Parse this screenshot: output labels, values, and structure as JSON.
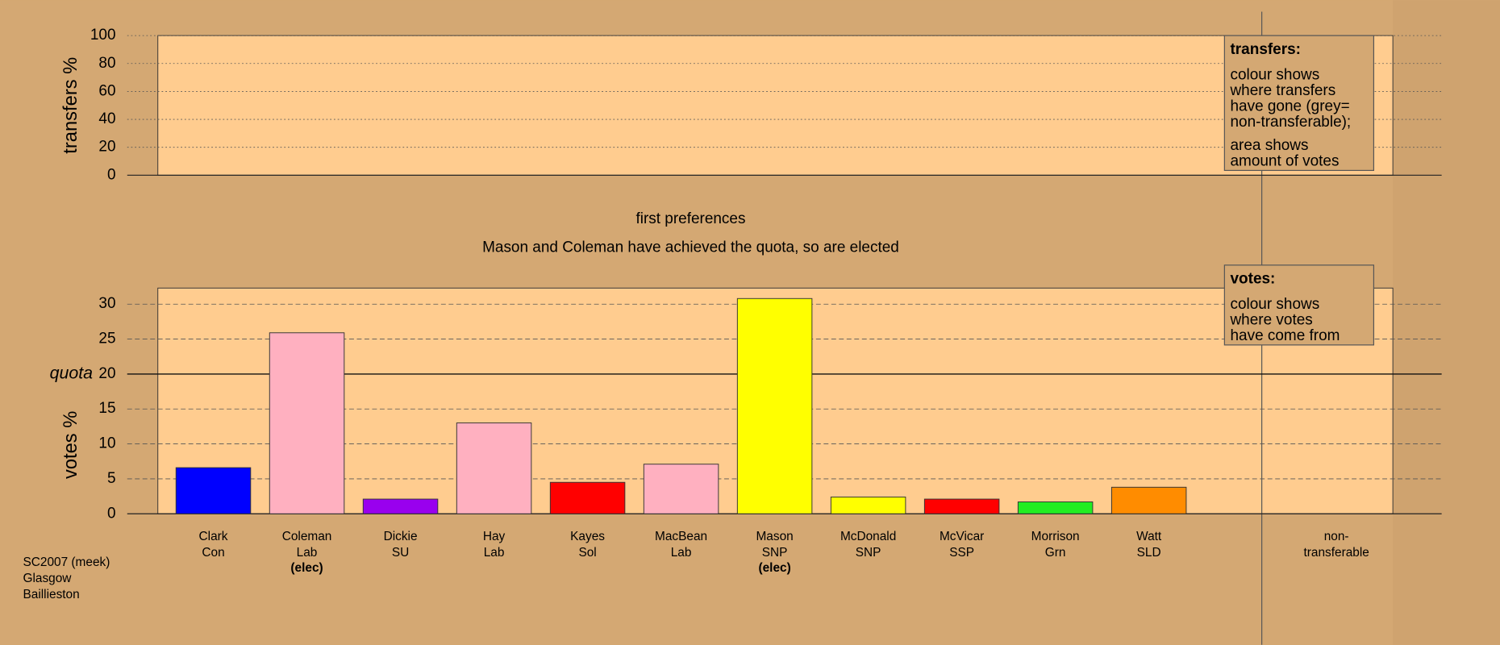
{
  "chart_data": [
    {
      "type": "bar",
      "ylabel": "transfers %",
      "ylim": [
        0,
        100
      ],
      "yticks": [
        0,
        20,
        40,
        60,
        80,
        100
      ],
      "grid": true,
      "note": {
        "title": "transfers:",
        "paragraphs": [
          [
            "colour shows",
            "where transfers",
            "have gone (grey=",
            "non-transferable);"
          ],
          [
            "area shows",
            "amount of votes"
          ]
        ]
      }
    },
    {
      "type": "bar",
      "title": "first preferences",
      "subtitle": "Mason and Coleman have achieved the quota, so are elected",
      "ylabel": "votes %",
      "ylim": [
        0,
        32.3
      ],
      "yticks": [
        0,
        5,
        10,
        15,
        20,
        25,
        30
      ],
      "grid": true,
      "quota": {
        "value": 20,
        "label": "quota"
      },
      "categories": [
        "Clark",
        "Coleman",
        "Dickie",
        "Hay",
        "Kayes",
        "MacBean",
        "Mason",
        "McDonald",
        "McVicar",
        "Morrison",
        "Watt"
      ],
      "parties": [
        "Con",
        "Lab",
        "SU",
        "Lab",
        "Sol",
        "Lab",
        "SNP",
        "SNP",
        "SSP",
        "Grn",
        "SLD"
      ],
      "status": [
        null,
        "(elec)",
        null,
        null,
        null,
        null,
        "(elec)",
        null,
        null,
        null,
        null
      ],
      "values": [
        6.6,
        25.9,
        2.1,
        13.0,
        4.5,
        7.1,
        30.8,
        2.4,
        2.1,
        1.7,
        3.8
      ],
      "colors": [
        "#0000ff",
        "#ffb0c0",
        "#9900ee",
        "#ffb0c0",
        "#ff0000",
        "#ffb0c0",
        "#ffff00",
        "#ffff00",
        "#ff0000",
        "#22ee22",
        "#ff8c00"
      ],
      "extra_category": [
        "non-",
        "transferable"
      ],
      "note": {
        "title": "votes:",
        "paragraphs": [
          [
            "colour shows",
            "where votes",
            "have come from"
          ]
        ]
      }
    }
  ],
  "footer": [
    "SC2007 (meek)",
    "Glasgow",
    "Baillieston"
  ]
}
